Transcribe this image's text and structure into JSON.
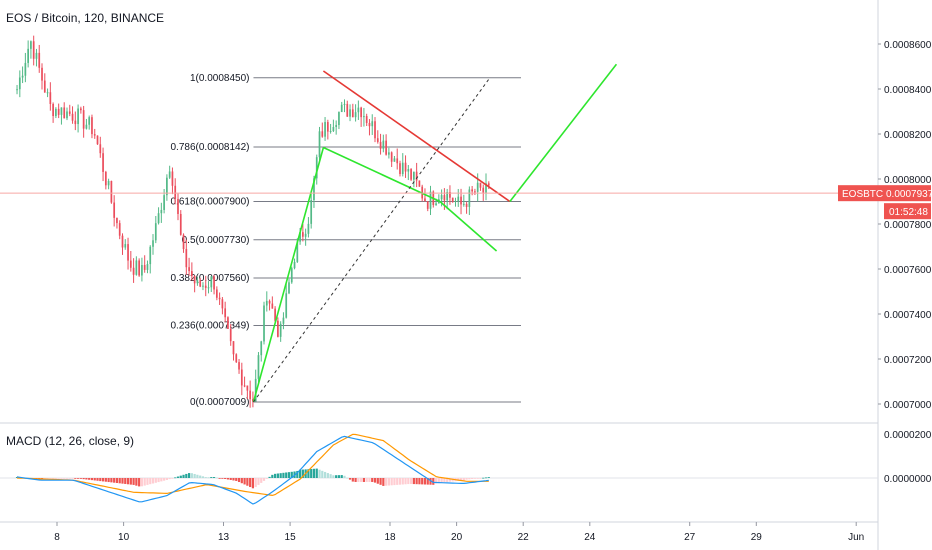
{
  "title": "EOS / Bitcoin, 120, BINANCE",
  "chart_data": [
    {
      "type": "candlestick",
      "symbol": "EOSBTC",
      "title": "EOS / Bitcoin, 120, BINANCE",
      "x_axis": {
        "ticks": [
          "8",
          "10",
          "13",
          "15",
          "18",
          "20",
          "22",
          "24",
          "27",
          "29",
          "Jun"
        ],
        "tick_days": [
          8,
          10,
          13,
          15,
          18,
          20,
          22,
          24,
          27,
          29,
          32
        ]
      },
      "y_axis": {
        "ticks": [
          "0.0007000",
          "0.0007200",
          "0.0007400",
          "0.0007600",
          "0.0007800",
          "0.0008000",
          "0.0008200",
          "0.0008400",
          "0.0008600"
        ],
        "range": [
          0.00069,
          0.00087
        ]
      },
      "last_price": {
        "label": "EOSBTC",
        "value": "0.0007937",
        "countdown": "01:52:48"
      },
      "fib_levels": [
        {
          "label": "1(0.0008450)",
          "value": 0.000845
        },
        {
          "label": "0.786(0.0008142)",
          "value": 0.0008142
        },
        {
          "label": "0.618(0.0007900)",
          "value": 0.00079
        },
        {
          "label": "0.5(0.0007730)",
          "value": 0.000773
        },
        {
          "label": "0.382(0.0007560)",
          "value": 0.000756
        },
        {
          "label": "0.236(0.0007349)",
          "value": 0.0007349
        },
        {
          "label": "0(0.0007009)",
          "value": 0.0007009
        }
      ],
      "fib_extent_days": [
        13.9,
        21.0
      ],
      "anchors": [
        {
          "day": 6.8,
          "close": 0.00084
        },
        {
          "day": 7.2,
          "close": 0.000862
        },
        {
          "day": 7.8,
          "close": 0.000832
        },
        {
          "day": 8.6,
          "close": 0.000828
        },
        {
          "day": 9.1,
          "close": 0.000822
        },
        {
          "day": 9.8,
          "close": 0.00078
        },
        {
          "day": 10.2,
          "close": 0.000762
        },
        {
          "day": 10.6,
          "close": 0.000758
        },
        {
          "day": 11.0,
          "close": 0.00078
        },
        {
          "day": 11.4,
          "close": 0.000808
        },
        {
          "day": 11.8,
          "close": 0.000765
        },
        {
          "day": 12.2,
          "close": 0.000752
        },
        {
          "day": 12.7,
          "close": 0.000755
        },
        {
          "day": 13.3,
          "close": 0.00072
        },
        {
          "day": 13.9,
          "close": 0.0007015
        },
        {
          "day": 14.3,
          "close": 0.00075
        },
        {
          "day": 14.7,
          "close": 0.00073
        },
        {
          "day": 15.1,
          "close": 0.000765
        },
        {
          "day": 15.6,
          "close": 0.000785
        },
        {
          "day": 15.9,
          "close": 0.00082
        },
        {
          "day": 16.5,
          "close": 0.00083
        },
        {
          "day": 17.1,
          "close": 0.000832
        },
        {
          "day": 17.6,
          "close": 0.00082
        },
        {
          "day": 18.2,
          "close": 0.000808
        },
        {
          "day": 18.7,
          "close": 0.0008
        },
        {
          "day": 19.1,
          "close": 0.00079
        },
        {
          "day": 19.6,
          "close": 0.000795
        },
        {
          "day": 20.1,
          "close": 0.000788
        },
        {
          "day": 20.6,
          "close": 0.000795
        },
        {
          "day": 21.0,
          "close": 0.0007937
        }
      ],
      "trendlines": [
        {
          "name": "resistance",
          "color": "#e53935",
          "from": [
            16.0,
            0.000848
          ],
          "to": [
            21.6,
            0.00079
          ]
        },
        {
          "name": "channel-top",
          "color": "#2ee62e",
          "from": [
            16.0,
            0.000814
          ],
          "to": [
            19.5,
            0.00079
          ]
        },
        {
          "name": "channel-bottom",
          "color": "#2ee62e",
          "from": [
            19.5,
            0.00079
          ],
          "to": [
            21.2,
            0.000768
          ]
        },
        {
          "name": "impulse",
          "color": "#2ee62e",
          "from": [
            13.9,
            0.0007009
          ],
          "to": [
            16.0,
            0.000814
          ]
        },
        {
          "name": "projection",
          "color": "#2ee62e",
          "from": [
            21.6,
            0.00079
          ],
          "to": [
            24.8,
            0.000851
          ]
        },
        {
          "name": "fib-diagonal",
          "color": "#333333",
          "dashed": true,
          "from": [
            13.9,
            0.0007009
          ],
          "to": [
            21.0,
            0.000845
          ]
        }
      ]
    },
    {
      "type": "histogram",
      "title": "MACD (12, 26, close, 9)",
      "y_axis": {
        "ticks": [
          "0.0000200",
          "0.0000000"
        ],
        "range": [
          -1.25e-05,
          2.12e-05
        ]
      },
      "macd_anchors": [
        {
          "day": 6.8,
          "v": 5e-07
        },
        {
          "day": 7.5,
          "v": -1e-06
        },
        {
          "day": 8.5,
          "v": -1e-06
        },
        {
          "day": 9.3,
          "v": -5e-06
        },
        {
          "day": 10.5,
          "v": -1.1e-05
        },
        {
          "day": 11.3,
          "v": -8e-06
        },
        {
          "day": 12.0,
          "v": -2e-06
        },
        {
          "day": 12.7,
          "v": -3e-06
        },
        {
          "day": 13.4,
          "v": -7e-06
        },
        {
          "day": 13.9,
          "v": -1.2e-05
        },
        {
          "day": 14.5,
          "v": -6e-06
        },
        {
          "day": 15.2,
          "v": 2e-06
        },
        {
          "day": 15.8,
          "v": 1.2e-05
        },
        {
          "day": 16.6,
          "v": 1.9e-05
        },
        {
          "day": 17.5,
          "v": 1.6e-05
        },
        {
          "day": 18.3,
          "v": 8e-06
        },
        {
          "day": 19.3,
          "v": -2e-06
        },
        {
          "day": 20.2,
          "v": -2.5e-06
        },
        {
          "day": 21.0,
          "v": -1e-06
        }
      ],
      "signal_anchors": [
        {
          "day": 6.8,
          "v": 0.0
        },
        {
          "day": 8.5,
          "v": -1e-06
        },
        {
          "day": 10.3,
          "v": -6.5e-06
        },
        {
          "day": 11.3,
          "v": -7e-06
        },
        {
          "day": 12.5,
          "v": -3e-06
        },
        {
          "day": 13.6,
          "v": -6e-06
        },
        {
          "day": 14.5,
          "v": -8e-06
        },
        {
          "day": 15.3,
          "v": -5e-07
        },
        {
          "day": 16.3,
          "v": 1.5e-05
        },
        {
          "day": 16.9,
          "v": 2e-05
        },
        {
          "day": 17.8,
          "v": 1.7e-05
        },
        {
          "day": 18.6,
          "v": 8e-06
        },
        {
          "day": 19.4,
          "v": 5e-07
        },
        {
          "day": 20.3,
          "v": -1.5e-06
        },
        {
          "day": 21.0,
          "v": -1.5e-06
        }
      ],
      "colors": {
        "macd": "#2196f3",
        "signal": "#ff9800",
        "hist_up": "#26a69a",
        "hist_down": "#ef5350"
      }
    }
  ],
  "colors": {
    "up": "#53b987",
    "down": "#eb4d5c",
    "price_tag": "#ef5350",
    "grid": "#e1e3ea"
  }
}
